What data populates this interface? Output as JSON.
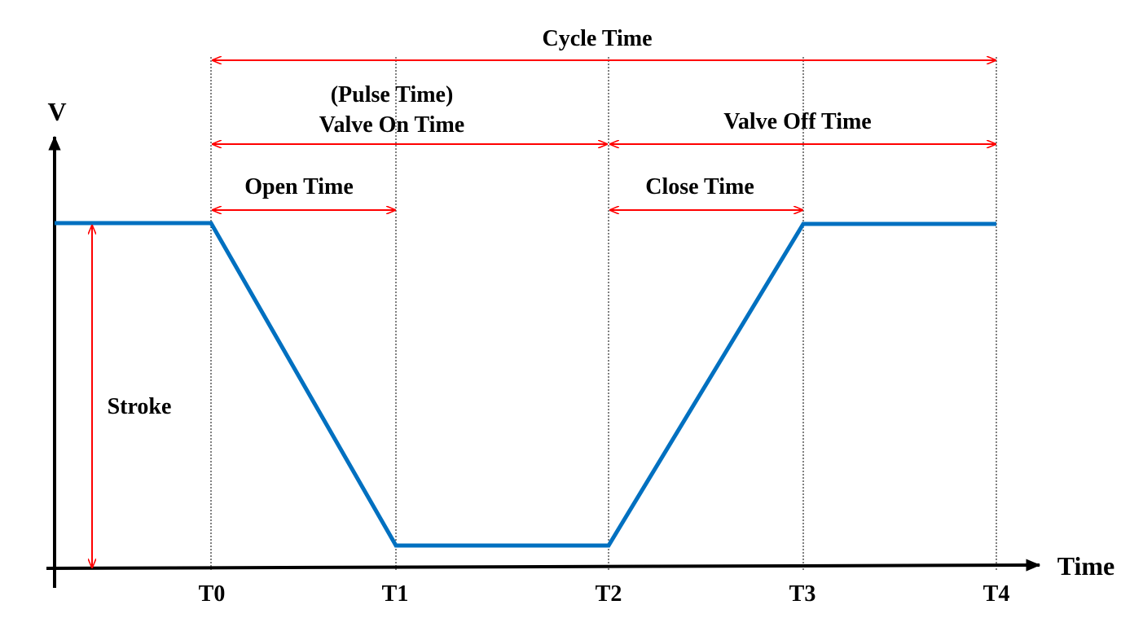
{
  "axes": {
    "y_label": "V",
    "x_label": "Time"
  },
  "ticks": [
    "T0",
    "T1",
    "T2",
    "T3",
    "T4"
  ],
  "intervals": {
    "cycle_time": "Cycle Time",
    "pulse_time": "(Pulse Time)",
    "valve_on_time": "Valve On Time",
    "valve_off_time": "Valve Off Time",
    "open_time": "Open Time",
    "close_time": "Close Time",
    "stroke": "Stroke"
  },
  "colors": {
    "signal": "#0070c0",
    "arrows": "#ff0000",
    "axes": "#000000"
  }
}
